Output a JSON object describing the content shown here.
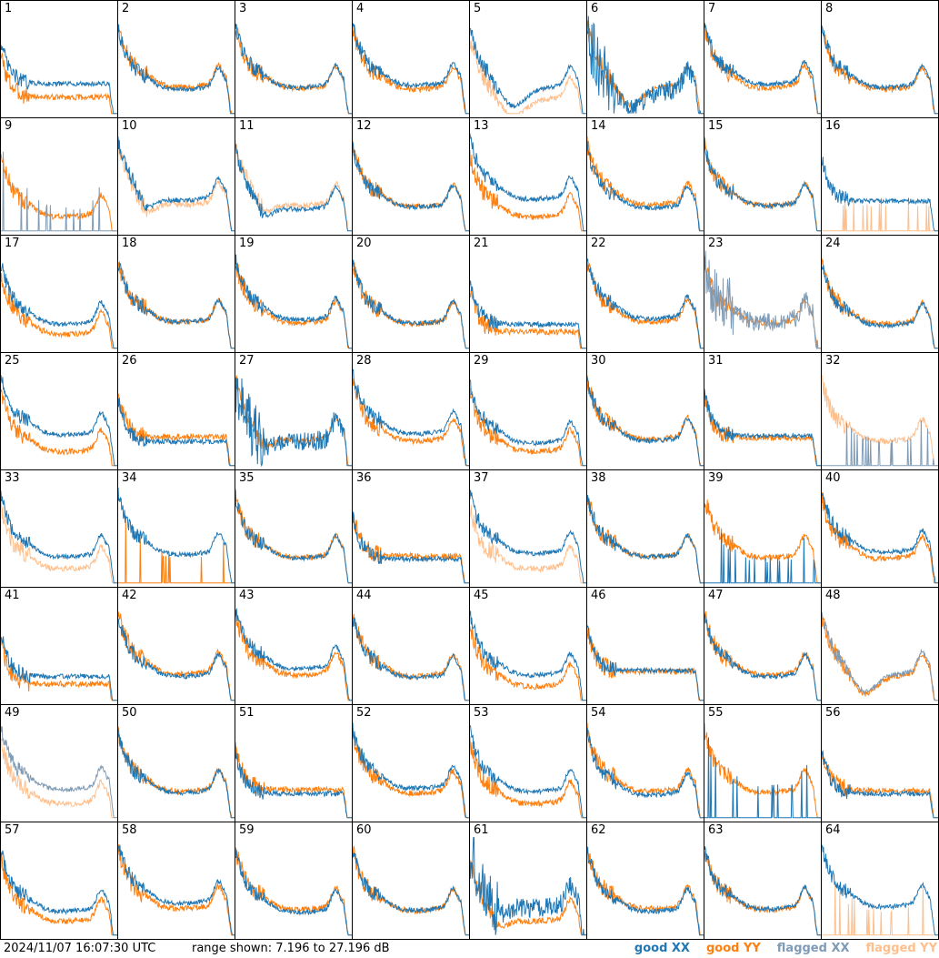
{
  "chart_data": {
    "type": "line",
    "layout": "8x8 small multiples",
    "panel_labels": [
      "1",
      "2",
      "3",
      "4",
      "5",
      "6",
      "7",
      "8",
      "9",
      "10",
      "11",
      "12",
      "13",
      "14",
      "15",
      "16",
      "17",
      "18",
      "19",
      "20",
      "21",
      "22",
      "23",
      "24",
      "25",
      "26",
      "27",
      "28",
      "29",
      "30",
      "31",
      "32",
      "33",
      "34",
      "35",
      "36",
      "37",
      "38",
      "39",
      "40",
      "41",
      "42",
      "43",
      "44",
      "45",
      "46",
      "47",
      "48",
      "49",
      "50",
      "51",
      "52",
      "53",
      "54",
      "55",
      "56",
      "57",
      "58",
      "59",
      "60",
      "61",
      "62",
      "63",
      "64"
    ],
    "ylim_db": [
      7.196,
      27.196
    ],
    "series": [
      {
        "name": "good XX",
        "color": "#1f77b4"
      },
      {
        "name": "good YY",
        "color": "#ff7f0e"
      },
      {
        "name": "flagged XX",
        "color": "#7f9bb5"
      },
      {
        "name": "flagged YY",
        "color": "#ffbf8c"
      }
    ],
    "panel_styles": {
      "1": {
        "xx": "normal",
        "yy": "normal",
        "drop": "yy-low",
        "shape": "flat"
      },
      "5": {
        "xx": "normal",
        "yy": "flagged",
        "shape": "dip"
      },
      "6": {
        "xx": "noisy",
        "yy": "normal",
        "shape": "dip"
      },
      "9": {
        "xx": "flagged-sparse",
        "yy": "normal"
      },
      "10": {
        "xx": "normal",
        "yy": "flagged",
        "shape": "hump"
      },
      "11": {
        "xx": "normal",
        "yy": "flagged",
        "shape": "hump"
      },
      "16": {
        "xx": "normal",
        "yy": "flagged-sparse"
      },
      "23": {
        "xx": "flagged-noisy",
        "yy": "normal"
      },
      "27": {
        "xx": "noisy",
        "yy": "normal",
        "shape": "hump"
      },
      "32": {
        "xx": "flagged-sparse",
        "yy": "flagged",
        "shape": "ragged"
      },
      "33": {
        "xx": "normal",
        "yy": "flagged"
      },
      "34": {
        "xx": "normal",
        "yy": "sparse"
      },
      "37": {
        "xx": "normal",
        "yy": "flagged"
      },
      "39": {
        "xx": "sparse",
        "yy": "normal"
      },
      "48": {
        "xx": "flagged",
        "yy": "normal",
        "shape": "dip"
      },
      "49": {
        "xx": "flagged",
        "yy": "flagged"
      },
      "55": {
        "xx": "sparse",
        "yy": "normal"
      },
      "61": {
        "xx": "noisy",
        "yy": "normal",
        "shape": "hump"
      },
      "64": {
        "xx": "normal",
        "yy": "flagged-sparse"
      }
    }
  },
  "footer": {
    "timestamp": "2024/11/07 16:07:30 UTC",
    "range_text": "range shown: 7.196 to 27.196 dB"
  },
  "legend": [
    {
      "label": "good XX",
      "color": "#1f77b4"
    },
    {
      "label": "good YY",
      "color": "#ff7f0e"
    },
    {
      "label": "flagged XX",
      "color": "#7f9bb5"
    },
    {
      "label": "flagged YY",
      "color": "#ffbf8c"
    }
  ]
}
